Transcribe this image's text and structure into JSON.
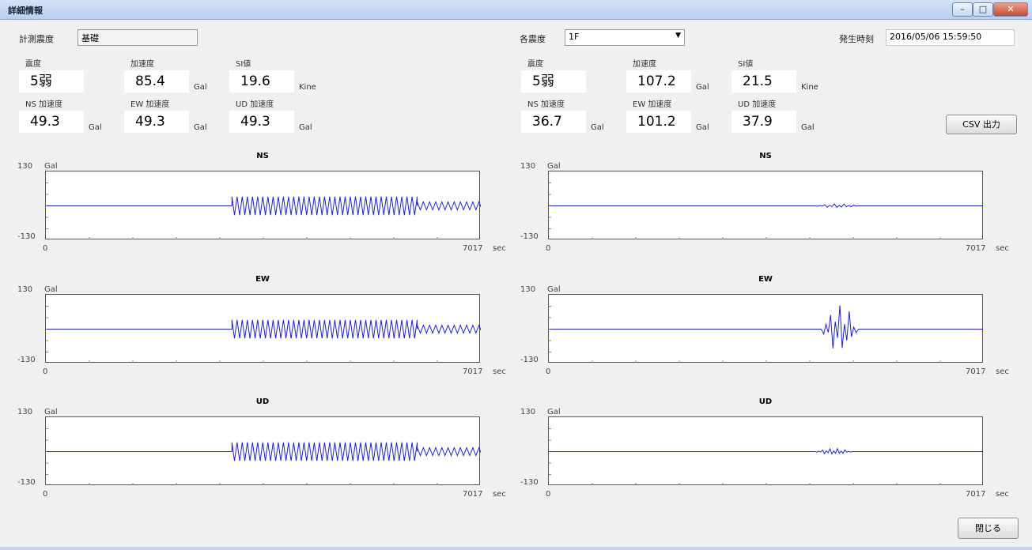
{
  "window": {
    "title": "詳細情報"
  },
  "left_panel": {
    "site_label": "計測震度",
    "site_value": "基礎",
    "row1": [
      {
        "label": "震度",
        "value": "5弱",
        "unit": ""
      },
      {
        "label": "加速度",
        "value": "85.4",
        "unit": "Gal"
      },
      {
        "label": "SI値",
        "value": "19.6",
        "unit": "Kine"
      }
    ],
    "row2": [
      {
        "label": "NS 加速度",
        "value": "49.3",
        "unit": "Gal"
      },
      {
        "label": "EW 加速度",
        "value": "49.3",
        "unit": "Gal"
      },
      {
        "label": "UD 加速度",
        "value": "49.3",
        "unit": "Gal"
      }
    ]
  },
  "right_panel": {
    "site_label": "各震度",
    "site_value": "1F",
    "time_label": "発生時刻",
    "time_value": "2016/05/06 15:59:50",
    "row1": [
      {
        "label": "震度",
        "value": "5弱",
        "unit": ""
      },
      {
        "label": "加速度",
        "value": "107.2",
        "unit": "Gal"
      },
      {
        "label": "SI値",
        "value": "21.5",
        "unit": "Kine"
      }
    ],
    "row2": [
      {
        "label": "NS 加速度",
        "value": "36.7",
        "unit": "Gal"
      },
      {
        "label": "EW 加速度",
        "value": "101.2",
        "unit": "Gal"
      },
      {
        "label": "UD 加速度",
        "value": "37.9",
        "unit": "Gal"
      }
    ],
    "csv_button": "CSV 出力"
  },
  "close_button": "閉じる",
  "chart_data": [
    {
      "type": "line",
      "panel": "left",
      "title": "NS",
      "ymax_label": "130",
      "ymin_label": "-130",
      "ylabel": "Gal",
      "xmin_label": "0",
      "xmax_label": "7017",
      "xlabel": "sec",
      "xlim": [
        0,
        7017
      ],
      "ylim": [
        -130,
        130
      ],
      "bursts": [
        {
          "start": 3000,
          "end": 6000,
          "amplitude": 35,
          "cycles": 36
        },
        {
          "start": 6000,
          "end": 7400,
          "amplitude": 15,
          "cycles": 14
        }
      ]
    },
    {
      "type": "line",
      "panel": "left",
      "title": "EW",
      "ymax_label": "130",
      "ymin_label": "-130",
      "ylabel": "Gal",
      "xmin_label": "0",
      "xmax_label": "7017",
      "xlabel": "sec",
      "xlim": [
        0,
        7017
      ],
      "ylim": [
        -130,
        130
      ],
      "bursts": [
        {
          "start": 3000,
          "end": 6000,
          "amplitude": 35,
          "cycles": 36
        },
        {
          "start": 6000,
          "end": 7400,
          "amplitude": 15,
          "cycles": 14
        }
      ]
    },
    {
      "type": "line",
      "panel": "left",
      "title": "UD",
      "ymax_label": "130",
      "ymin_label": "-130",
      "ylabel": "Gal",
      "xmin_label": "0",
      "xmax_label": "7017",
      "xlabel": "sec",
      "xlim": [
        0,
        7017
      ],
      "ylim": [
        -130,
        130
      ],
      "bursts": [
        {
          "start": 3000,
          "end": 6000,
          "amplitude": 35,
          "cycles": 36
        },
        {
          "start": 6000,
          "end": 7400,
          "amplitude": 15,
          "cycles": 14
        }
      ]
    },
    {
      "type": "line",
      "panel": "right",
      "title": "NS",
      "ymax_label": "130",
      "ymin_label": "-130",
      "ylabel": "Gal",
      "xmin_label": "0",
      "xmax_label": "7017",
      "xlabel": "sec",
      "xlim": [
        0,
        7017
      ],
      "ylim": [
        -130,
        130
      ],
      "bursts": [
        {
          "start": 4300,
          "end": 5000,
          "amplitude": 8,
          "cycles": 9
        }
      ]
    },
    {
      "type": "line",
      "panel": "right",
      "title": "EW",
      "ymax_label": "130",
      "ymin_label": "-130",
      "ylabel": "Gal",
      "xmin_label": "0",
      "xmax_label": "7017",
      "xlabel": "sec",
      "xlim": [
        0,
        7017
      ],
      "ylim": [
        -130,
        130
      ],
      "bursts": [
        {
          "start": 4400,
          "end": 5000,
          "amplitude": 95,
          "cycles": 8
        }
      ]
    },
    {
      "type": "line",
      "panel": "right",
      "title": "UD",
      "ymax_label": "130",
      "ymin_label": "-130",
      "ylabel": "Gal",
      "xmin_label": "0",
      "xmax_label": "7017",
      "xlabel": "sec",
      "xlim": [
        0,
        7017
      ],
      "ylim": [
        -130,
        130
      ],
      "bursts": [
        {
          "start": 4300,
          "end": 4900,
          "amplitude": 12,
          "cycles": 10
        }
      ]
    }
  ]
}
